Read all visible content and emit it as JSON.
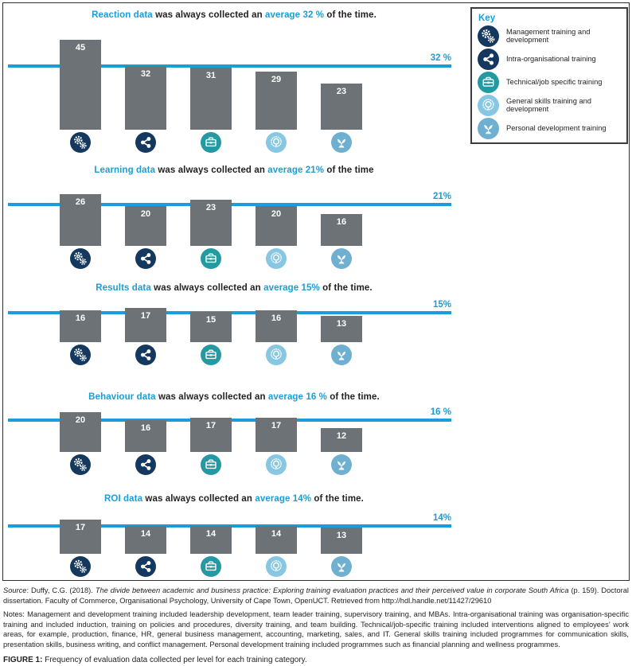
{
  "colors": {
    "accent_blue": "#1b9dd9",
    "bar_gray": "#6c7276",
    "navy": "#15395e",
    "teal": "#2399a2",
    "sky": "#87c7e2",
    "steel": "#6fb0d1"
  },
  "key": {
    "title": "Key",
    "items": [
      {
        "icon": "gears-icon",
        "color_key": "navy",
        "label": "Management training and development"
      },
      {
        "icon": "share-icon",
        "color_key": "navy",
        "label": "Intra-organisational training"
      },
      {
        "icon": "briefcase-icon",
        "color_key": "teal",
        "label": "Technical/job specific training"
      },
      {
        "icon": "lightbulb-icon",
        "color_key": "sky",
        "label": "General skills training and development"
      },
      {
        "icon": "seedling-icon",
        "color_key": "steel",
        "label": "Personal development training"
      }
    ]
  },
  "sections": [
    {
      "id": "reaction",
      "title_parts": {
        "lead": "Reaction data",
        "mid": " was always collected an ",
        "avg": "average 32 %",
        "tail": " of the time."
      },
      "avg_value": 32,
      "avg_label": "32 %",
      "values": [
        45,
        32,
        31,
        29,
        23
      ]
    },
    {
      "id": "learning",
      "title_parts": {
        "lead": "Learning data",
        "mid": " was always collected an ",
        "avg": "average 21%",
        "tail": " of the time"
      },
      "avg_value": 21,
      "avg_label": "21%",
      "values": [
        26,
        20,
        23,
        20,
        16
      ]
    },
    {
      "id": "results",
      "title_parts": {
        "lead": "Results data",
        "mid": " was always collected an ",
        "avg": "average 15%",
        "tail": " of the time."
      },
      "avg_value": 15,
      "avg_label": "15%",
      "values": [
        16,
        17,
        15,
        16,
        13
      ]
    },
    {
      "id": "behaviour",
      "title_parts": {
        "lead": "Behaviour data",
        "mid": " was always collected an ",
        "avg": "average 16 %",
        "tail": " of the time."
      },
      "avg_value": 16,
      "avg_label": "16 %",
      "values": [
        20,
        16,
        17,
        17,
        12
      ]
    },
    {
      "id": "roi",
      "title_parts": {
        "lead": "ROI data",
        "mid": " was always collected an ",
        "avg": "average 14%",
        "tail": " of the time."
      },
      "avg_value": 14,
      "avg_label": "14%",
      "values": [
        17,
        14,
        14,
        14,
        13
      ]
    }
  ],
  "chart_data": [
    {
      "type": "bar",
      "title": "Reaction data was always collected an average 32 % of the time.",
      "categories": [
        "Management training and development",
        "Intra-organisational training",
        "Technical/job specific training",
        "General skills training and development",
        "Personal development training"
      ],
      "values": [
        45,
        32,
        31,
        29,
        23
      ],
      "reference_line": {
        "value": 32,
        "label": "32 %"
      },
      "unit": "%",
      "bar_color": "#6c7276",
      "legend_position": "top-right key box",
      "grid": false
    },
    {
      "type": "bar",
      "title": "Learning data was always collected an average 21% of the time",
      "categories": [
        "Management training and development",
        "Intra-organisational training",
        "Technical/job specific training",
        "General skills training and development",
        "Personal development training"
      ],
      "values": [
        26,
        20,
        23,
        20,
        16
      ],
      "reference_line": {
        "value": 21,
        "label": "21%"
      },
      "unit": "%",
      "bar_color": "#6c7276",
      "grid": false
    },
    {
      "type": "bar",
      "title": "Results data was always collected an average 15% of the time.",
      "categories": [
        "Management training and development",
        "Intra-organisational training",
        "Technical/job specific training",
        "General skills training and development",
        "Personal development training"
      ],
      "values": [
        16,
        17,
        15,
        16,
        13
      ],
      "reference_line": {
        "value": 15,
        "label": "15%"
      },
      "unit": "%",
      "bar_color": "#6c7276",
      "grid": false
    },
    {
      "type": "bar",
      "title": "Behaviour data was always collected an average 16 % of the time.",
      "categories": [
        "Management training and development",
        "Intra-organisational training",
        "Technical/job specific training",
        "General skills training and development",
        "Personal development training"
      ],
      "values": [
        20,
        16,
        17,
        17,
        12
      ],
      "reference_line": {
        "value": 16,
        "label": "16 %"
      },
      "unit": "%",
      "bar_color": "#6c7276",
      "grid": false
    },
    {
      "type": "bar",
      "title": "ROI data was always collected an average 14% of the time.",
      "categories": [
        "Management training and development",
        "Intra-organisational training",
        "Technical/job specific training",
        "General skills training and development",
        "Personal development training"
      ],
      "values": [
        17,
        14,
        14,
        14,
        13
      ],
      "reference_line": {
        "value": 14,
        "label": "14%"
      },
      "unit": "%",
      "bar_color": "#6c7276",
      "grid": false
    }
  ],
  "footer": {
    "source_label": "Source",
    "source_pre": ": Duffy, C.G. (2018). ",
    "source_title_italic": "The divide between academic and business practice: Exploring training evaluation practices and their perceived value in corporate South Africa",
    "source_post": " (p. 159). Doctoral dissertation. Faculty of Commerce, Organisational Psychology, University of Cape Town, OpenUCT. Retrieved from http://hdl.handle.net/11427/29610",
    "notes_label": "Notes",
    "notes_text": ": Management and development training included leadership development, team leader training, supervisory training, and MBAs. Intra-organisational training was organisation-specific training and included induction, training on policies and procedures, diversity training, and team building. Technical/job-specific training included interventions aligned to employees’ work areas, for example, production, finance, HR, general business management, accounting, marketing, sales, and IT. General skills training included programmes for communication skills, presentation skills, business writing, and conflict management. Personal development training included programmes such as financial planning and wellness programmes.",
    "caption_label": "FIGURE 1:",
    "caption_text": " Frequency of evaluation data collected per level for each training category."
  }
}
